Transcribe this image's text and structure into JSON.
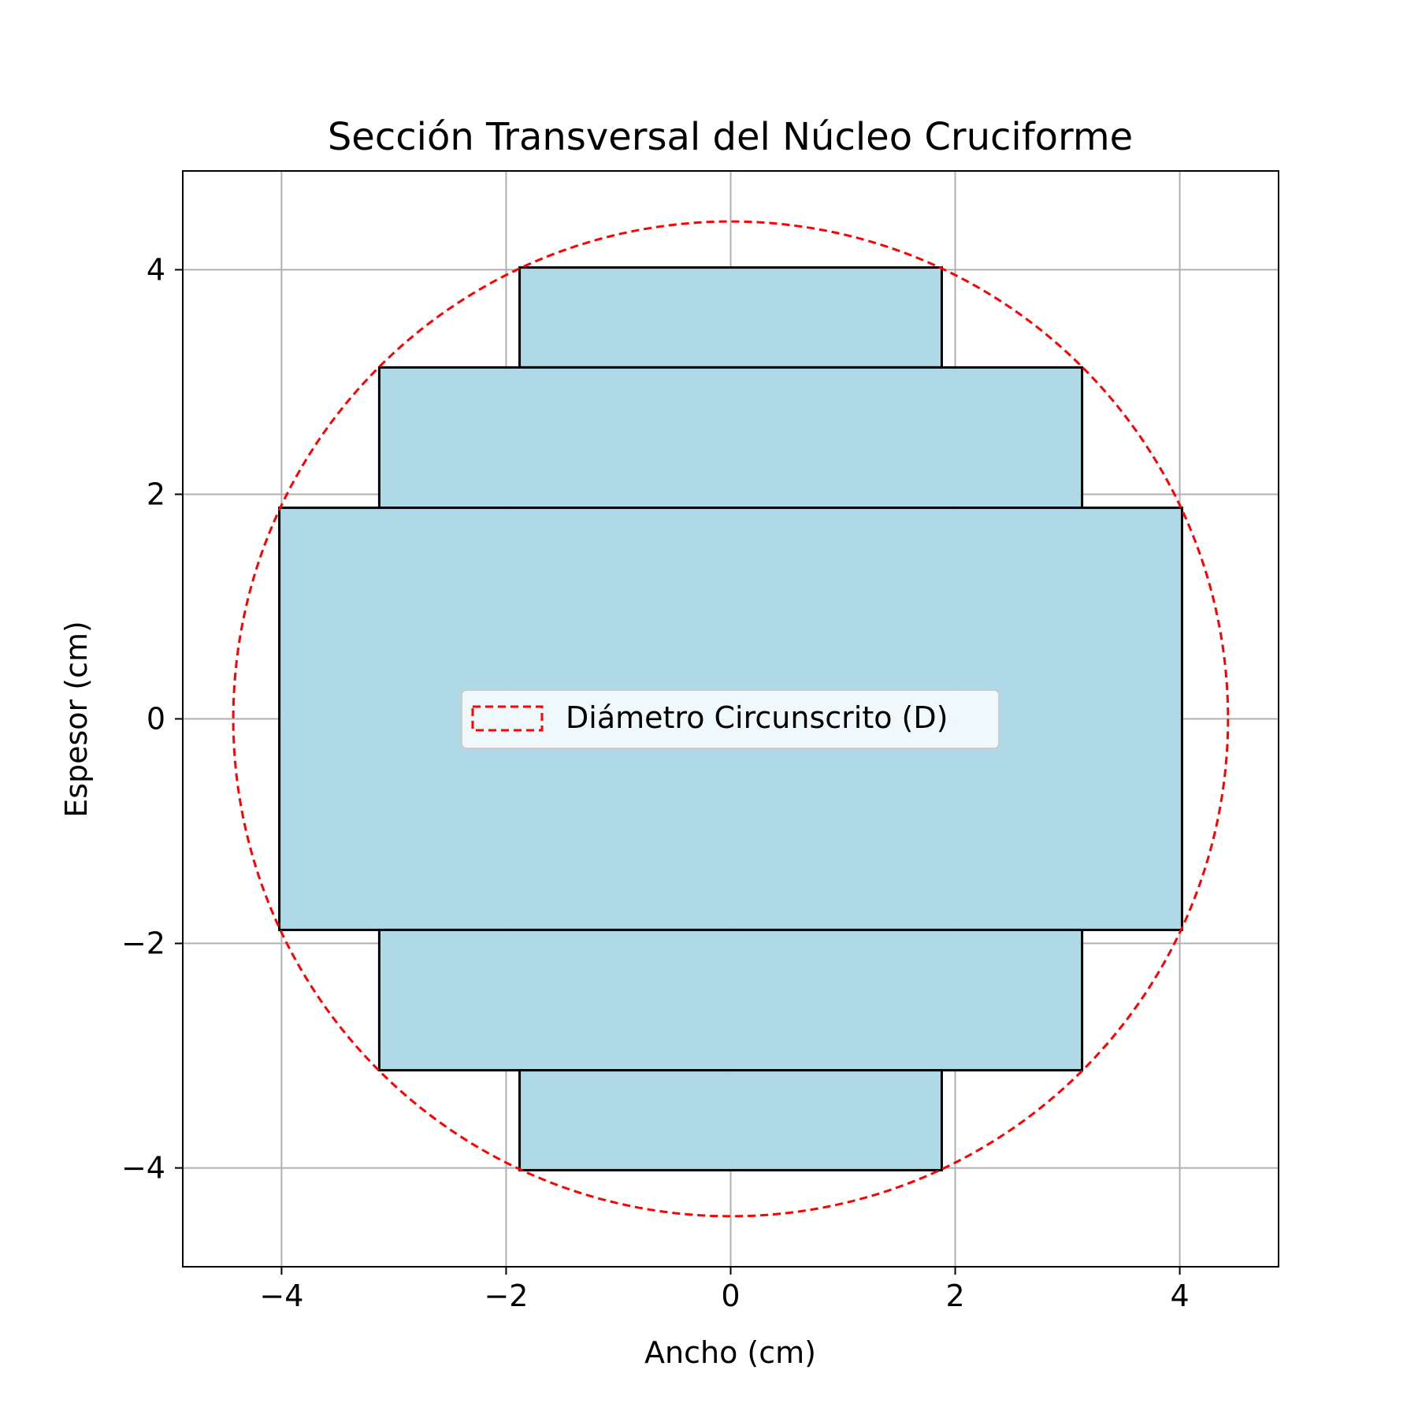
{
  "chart_data": {
    "type": "area",
    "title": "Sección Transversal del Núcleo Cruciforme",
    "xlabel": "Ancho (cm)",
    "ylabel": "Espesor (cm)",
    "xlim": [
      -4.88,
      4.88
    ],
    "ylim": [
      -4.88,
      4.88
    ],
    "xticks": [
      -4,
      -2,
      0,
      2,
      4
    ],
    "yticks": [
      -4,
      -2,
      0,
      2,
      4
    ],
    "xtick_labels": [
      "−4",
      "−2",
      "0",
      "2",
      "4"
    ],
    "ytick_labels": [
      "−4",
      "−2",
      "0",
      "2",
      "4"
    ],
    "grid": true,
    "steps": [
      {
        "x_min": -1.88,
        "x_max": 1.88,
        "y_min": 3.13,
        "y_max": 4.02
      },
      {
        "x_min": -3.13,
        "x_max": 3.13,
        "y_min": 1.88,
        "y_max": 3.13
      },
      {
        "x_min": -4.02,
        "x_max": 4.02,
        "y_min": -1.88,
        "y_max": 1.88
      },
      {
        "x_min": -3.13,
        "x_max": 3.13,
        "y_min": -3.13,
        "y_max": -1.88
      },
      {
        "x_min": -1.88,
        "x_max": 1.88,
        "y_min": -4.02,
        "y_max": -3.13
      }
    ],
    "circle": {
      "center": [
        0,
        0
      ],
      "radius": 4.43
    },
    "legend": {
      "label": "Diámetro Circunscrito (D)",
      "position": "center"
    },
    "colors": {
      "step_fill": "#add8e6",
      "step_edge": "#000000",
      "circle": "#ff0000",
      "grid": "#b0b0b0"
    }
  }
}
